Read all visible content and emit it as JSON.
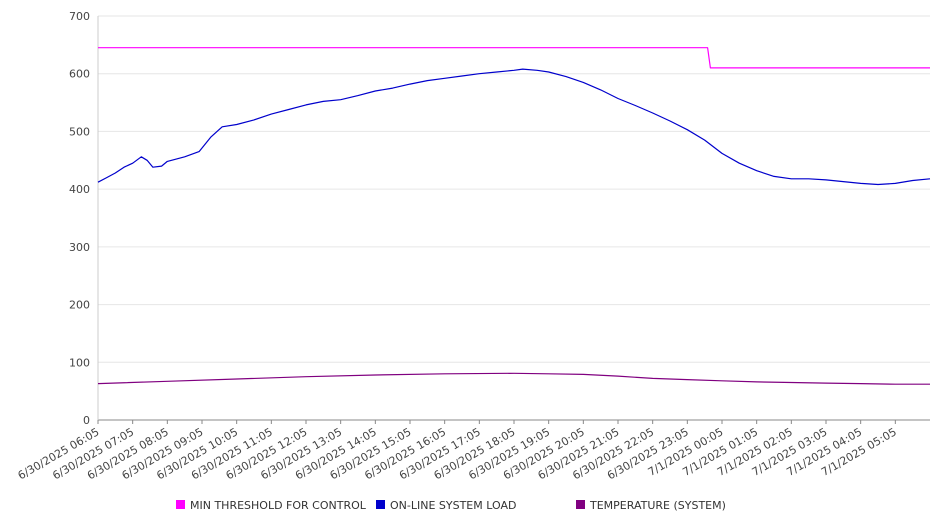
{
  "chart_data": {
    "type": "line",
    "title": "",
    "xlabel": "",
    "ylabel": "",
    "ylim": [
      0,
      700
    ],
    "yticks": [
      0,
      100,
      200,
      300,
      400,
      500,
      600,
      700
    ],
    "x_tick_labels": [
      "6/30/2025 06:05",
      "6/30/2025 07:05",
      "6/30/2025 08:05",
      "6/30/2025 09:05",
      "6/30/2025 10:05",
      "6/30/2025 11:05",
      "6/30/2025 12:05",
      "6/30/2025 13:05",
      "6/30/2025 14:05",
      "6/30/2025 15:05",
      "6/30/2025 16:05",
      "6/30/2025 17:05",
      "6/30/2025 18:05",
      "6/30/2025 19:05",
      "6/30/2025 20:05",
      "6/30/2025 21:05",
      "6/30/2025 22:05",
      "6/30/2025 23:05",
      "7/1/2025 00:05",
      "7/1/2025 01:05",
      "7/1/2025 02:05",
      "7/1/2025 03:05",
      "7/1/2025 04:05",
      "7/1/2025 05:05"
    ],
    "x_range": [
      "6/30/2025 06:05",
      "7/1/2025 06:05"
    ],
    "grid": true,
    "legend_position": "bottom",
    "series": [
      {
        "name": "MIN THRESHOLD FOR CONTROL",
        "color": "#ff00ff",
        "points": [
          [
            "6/30/2025 06:05",
            645
          ],
          [
            "6/30/2025 23:40",
            645
          ],
          [
            "6/30/2025 23:45",
            610
          ],
          [
            "7/1/2025 06:05",
            610
          ]
        ]
      },
      {
        "name": "ON-LINE SYSTEM LOAD",
        "color": "#0000cc",
        "points": [
          [
            "6/30/2025 06:05",
            412
          ],
          [
            "6/30/2025 06:20",
            420
          ],
          [
            "6/30/2025 06:35",
            428
          ],
          [
            "6/30/2025 06:50",
            438
          ],
          [
            "6/30/2025 07:05",
            445
          ],
          [
            "6/30/2025 07:20",
            456
          ],
          [
            "6/30/2025 07:30",
            450
          ],
          [
            "6/30/2025 07:40",
            438
          ],
          [
            "6/30/2025 07:55",
            440
          ],
          [
            "6/30/2025 08:05",
            448
          ],
          [
            "6/30/2025 08:35",
            456
          ],
          [
            "6/30/2025 09:00",
            465
          ],
          [
            "6/30/2025 09:20",
            490
          ],
          [
            "6/30/2025 09:40",
            508
          ],
          [
            "6/30/2025 10:05",
            512
          ],
          [
            "6/30/2025 10:35",
            520
          ],
          [
            "6/30/2025 11:05",
            530
          ],
          [
            "6/30/2025 11:35",
            538
          ],
          [
            "6/30/2025 12:05",
            546
          ],
          [
            "6/30/2025 12:35",
            552
          ],
          [
            "6/30/2025 13:05",
            555
          ],
          [
            "6/30/2025 13:35",
            562
          ],
          [
            "6/30/2025 14:05",
            570
          ],
          [
            "6/30/2025 14:35",
            575
          ],
          [
            "6/30/2025 15:05",
            582
          ],
          [
            "6/30/2025 15:35",
            588
          ],
          [
            "6/30/2025 16:05",
            592
          ],
          [
            "6/30/2025 16:35",
            596
          ],
          [
            "6/30/2025 17:05",
            600
          ],
          [
            "6/30/2025 17:35",
            603
          ],
          [
            "6/30/2025 18:05",
            606
          ],
          [
            "6/30/2025 18:20",
            608
          ],
          [
            "6/30/2025 18:45",
            606
          ],
          [
            "6/30/2025 19:05",
            603
          ],
          [
            "6/30/2025 19:35",
            595
          ],
          [
            "6/30/2025 20:05",
            585
          ],
          [
            "6/30/2025 20:35",
            572
          ],
          [
            "6/30/2025 21:05",
            557
          ],
          [
            "6/30/2025 21:35",
            545
          ],
          [
            "6/30/2025 22:05",
            532
          ],
          [
            "6/30/2025 22:35",
            518
          ],
          [
            "6/30/2025 23:05",
            503
          ],
          [
            "6/30/2025 23:35",
            485
          ],
          [
            "7/1/2025 00:05",
            462
          ],
          [
            "7/1/2025 00:35",
            445
          ],
          [
            "7/1/2025 01:05",
            432
          ],
          [
            "7/1/2025 01:35",
            422
          ],
          [
            "7/1/2025 02:05",
            418
          ],
          [
            "7/1/2025 02:35",
            418
          ],
          [
            "7/1/2025 03:05",
            416
          ],
          [
            "7/1/2025 03:35",
            413
          ],
          [
            "7/1/2025 04:05",
            410
          ],
          [
            "7/1/2025 04:35",
            408
          ],
          [
            "7/1/2025 05:05",
            410
          ],
          [
            "7/1/2025 05:35",
            415
          ],
          [
            "7/1/2025 06:05",
            418
          ]
        ]
      },
      {
        "name": "TEMPERATURE (SYSTEM)",
        "color": "#800080",
        "points": [
          [
            "6/30/2025 06:05",
            63
          ],
          [
            "6/30/2025 08:05",
            67
          ],
          [
            "6/30/2025 10:05",
            71
          ],
          [
            "6/30/2025 12:05",
            75
          ],
          [
            "6/30/2025 14:05",
            78
          ],
          [
            "6/30/2025 16:05",
            80
          ],
          [
            "6/30/2025 18:05",
            81
          ],
          [
            "6/30/2025 19:05",
            80
          ],
          [
            "6/30/2025 20:05",
            79
          ],
          [
            "6/30/2025 21:05",
            76
          ],
          [
            "6/30/2025 22:05",
            72
          ],
          [
            "6/30/2025 23:05",
            70
          ],
          [
            "7/1/2025 00:05",
            68
          ],
          [
            "7/1/2025 01:05",
            66
          ],
          [
            "7/1/2025 02:05",
            65
          ],
          [
            "7/1/2025 03:05",
            64
          ],
          [
            "7/1/2025 04:05",
            63
          ],
          [
            "7/1/2025 05:05",
            62
          ],
          [
            "7/1/2025 06:05",
            62
          ]
        ]
      }
    ]
  }
}
